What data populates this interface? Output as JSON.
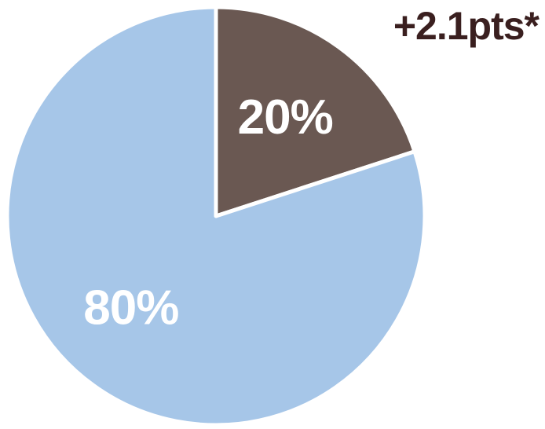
{
  "chart_data": {
    "type": "pie",
    "start_angle": "12 o'clock",
    "direction": "clockwise",
    "slices": [
      {
        "value": 20,
        "label": "20%",
        "color": "#6a5852"
      },
      {
        "value": 80,
        "label": "80%",
        "color": "#a6c6e8"
      }
    ],
    "annotation": "+2.1pts*"
  }
}
